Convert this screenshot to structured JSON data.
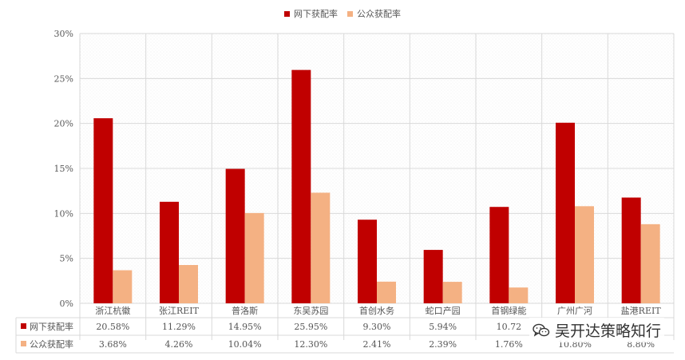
{
  "chart_data": {
    "type": "bar",
    "title": "",
    "xlabel": "",
    "ylabel": "",
    "ylim": [
      0,
      30
    ],
    "yticks": [
      "0%",
      "5%",
      "10%",
      "15%",
      "20%",
      "25%",
      "30%"
    ],
    "categories": [
      "浙江杭徽",
      "张江REIT",
      "普洛斯",
      "东吴苏园",
      "首创水务",
      "蛇口产园",
      "首钢绿能",
      "广州广河",
      "盐港REIT"
    ],
    "series": [
      {
        "name": "网下获配率",
        "color": "#c00000",
        "values": [
          20.58,
          11.29,
          14.95,
          25.95,
          9.3,
          5.94,
          10.72,
          20.08,
          11.76
        ],
        "labels": [
          "20.58%",
          "11.29%",
          "14.95%",
          "25.95%",
          "9.30%",
          "5.94%",
          "10.72",
          "",
          ""
        ]
      },
      {
        "name": "公众获配率",
        "color": "#f4b183",
        "values": [
          3.68,
          4.26,
          10.04,
          12.3,
          2.41,
          2.39,
          1.76,
          10.8,
          8.8
        ],
        "labels": [
          "3.68%",
          "4.26%",
          "10.04%",
          "12.30%",
          "2.41%",
          "2.39%",
          "1.76%",
          "10.80%",
          "8.80%"
        ]
      }
    ],
    "grid": true,
    "legend_position": "top-center",
    "data_table": true
  },
  "watermark": {
    "text": "吴开达策略知行",
    "icon": "wechat-icon"
  }
}
